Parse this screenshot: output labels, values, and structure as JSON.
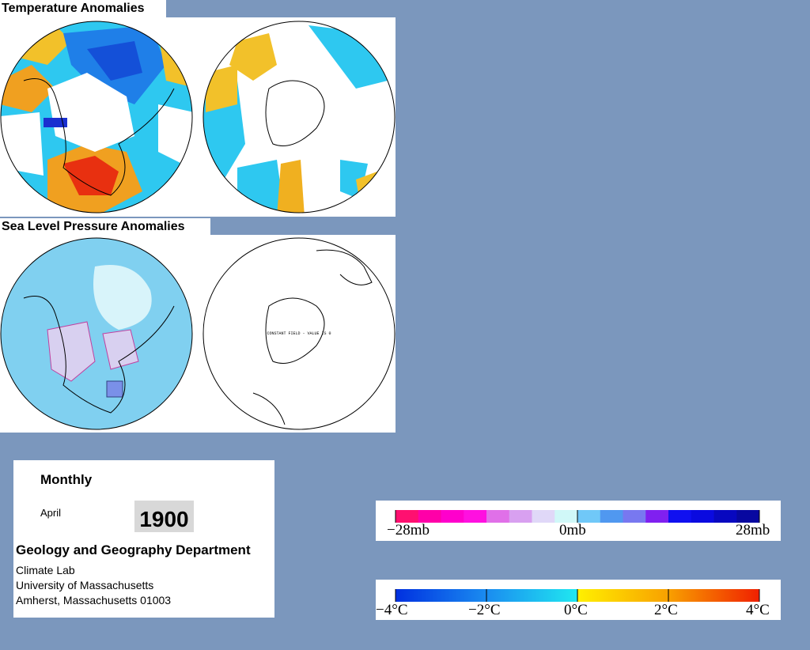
{
  "temperature": {
    "title": "Temperature Anomalies"
  },
  "pressure": {
    "title": "Sea Level Pressure Anomalies",
    "note": "CONSTANT FIELD - VALUE IS 0"
  },
  "info": {
    "period": "Monthly",
    "month": "April",
    "year": "1900",
    "department": "Geology and Geography Department",
    "address": [
      "Climate Lab",
      "University of Massachusetts",
      "Amherst, Massachusetts 01003"
    ]
  },
  "pressure_scale": {
    "labels": [
      "−28mb",
      "0mb",
      "28mb"
    ]
  },
  "temperature_scale": {
    "labels": [
      "−4°C",
      "−2°C",
      "0°C",
      "2°C",
      "4°C"
    ]
  }
}
